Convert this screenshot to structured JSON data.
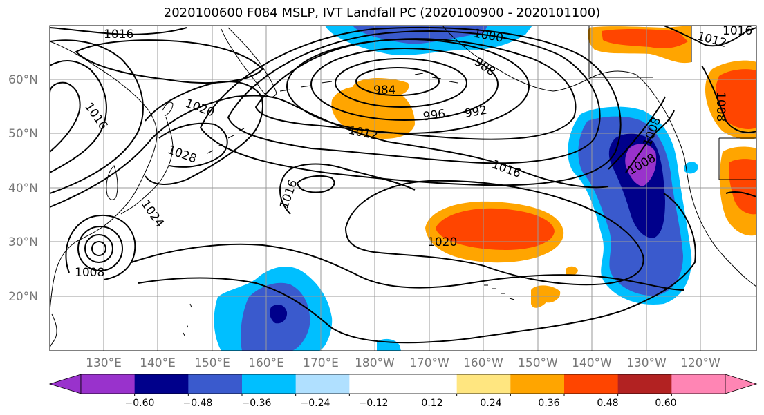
{
  "title": "2020100600 F084 MSLP, IVT Landfall PC (2020100900 - 2020101100)",
  "lat_labels": [
    "60°N",
    "50°N",
    "40°N",
    "30°N",
    "20°N"
  ],
  "lon_labels": [
    "130°E",
    "140°E",
    "150°E",
    "160°E",
    "170°E",
    "180°W",
    "170°W",
    "160°W",
    "150°W",
    "140°W",
    "130°W",
    "120°W"
  ],
  "contour_labels": [
    "1016",
    "1000",
    "1016",
    "1012",
    "1020",
    "1016",
    "984",
    "988",
    "992",
    "996",
    "1008",
    "1012",
    "1028",
    "1008",
    "1016",
    "1016",
    "1008",
    "1024",
    "1020",
    "1008"
  ],
  "colorbar": {
    "colors": [
      "#9932cc",
      "#00008b",
      "#3a5acd",
      "#00bfff",
      "#b0e0ff",
      "#ffffff",
      "#ffffff",
      "#ffe680",
      "#ffa500",
      "#ff4500",
      "#b22222",
      "#ff85b4"
    ],
    "under_color": "#9932cc",
    "over_color": "#ff85b4",
    "tick_labels": [
      "−0.60",
      "−0.48",
      "−0.36",
      "−0.24",
      "−0.12",
      "0.12",
      "0.24",
      "0.36",
      "0.48",
      "0.60"
    ]
  },
  "map": {
    "ocean_color": "#ffffff",
    "gridlines": true,
    "grid_color": "#999999"
  }
}
